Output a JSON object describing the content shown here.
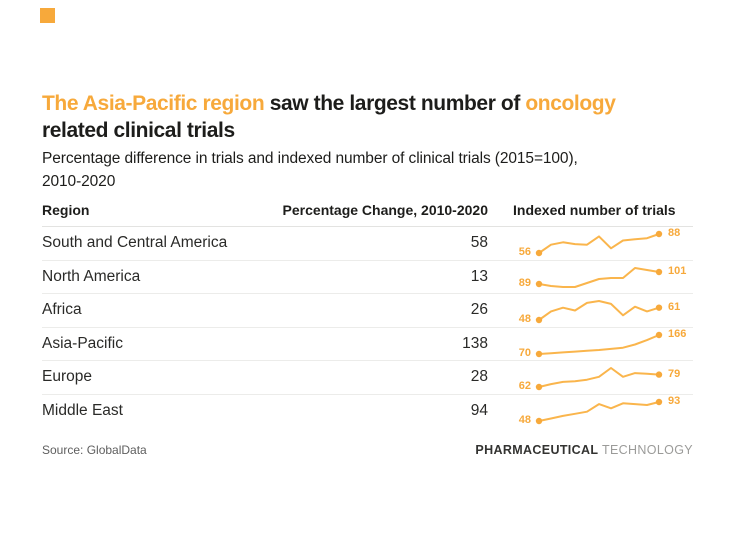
{
  "accent_color": "#F7A93B",
  "sparkline_color": "#FAB54C",
  "title": {
    "highlight1": "The Asia-Pacific region",
    "middle": " saw the largest number of ",
    "highlight2": "oncology",
    "line2": "related clinical trials"
  },
  "subtitle": {
    "line1": "Percentage difference in trials and indexed number of clinical trials (2015=100),",
    "line2": "2010-2020"
  },
  "table": {
    "headers": {
      "region": "Region",
      "pct_change": "Percentage Change, 2010-2020",
      "indexed": "Indexed number of trials"
    }
  },
  "chart_data": {
    "type": "table",
    "title": "The Asia-Pacific region saw the largest number of oncology related clinical trials",
    "subtitle": "Percentage difference in trials and indexed number of clinical trials (2015=100), 2010-2020",
    "columns": [
      "Region",
      "Percentage Change, 2010-2020",
      "Indexed number of trials"
    ],
    "sparkline_type": "line",
    "sparkline_x_range": [
      2010,
      2020
    ],
    "sparkline_index_base": "2015=100",
    "rows": [
      {
        "region": "South and Central America",
        "pct_change": 58,
        "index_start": 56,
        "index_end": 88,
        "sparkline": [
          56,
          70,
          74,
          71,
          70,
          84,
          64,
          77,
          79,
          81,
          88
        ]
      },
      {
        "region": "North America",
        "pct_change": 13,
        "index_start": 89,
        "index_end": 101,
        "sparkline": [
          89,
          87,
          86,
          86,
          90,
          94,
          95,
          95,
          105,
          103,
          101
        ]
      },
      {
        "region": "Africa",
        "pct_change": 26,
        "index_start": 48,
        "index_end": 61,
        "sparkline": [
          48,
          57,
          61,
          58,
          66,
          68,
          65,
          53,
          62,
          57,
          61
        ]
      },
      {
        "region": "Asia-Pacific",
        "pct_change": 138,
        "index_start": 70,
        "index_end": 166,
        "sparkline": [
          70,
          74,
          78,
          82,
          86,
          90,
          96,
          102,
          118,
          140,
          166
        ]
      },
      {
        "region": "Europe",
        "pct_change": 28,
        "index_start": 62,
        "index_end": 79,
        "sparkline": [
          62,
          66,
          69,
          70,
          72,
          76,
          88,
          76,
          81,
          80,
          79
        ]
      },
      {
        "region": "Middle East",
        "pct_change": 94,
        "index_start": 48,
        "index_end": 93,
        "sparkline": [
          48,
          54,
          60,
          65,
          70,
          88,
          78,
          90,
          88,
          86,
          93
        ]
      }
    ]
  },
  "footer": {
    "source": "Source: GlobalData",
    "brand_bold": "PHARMACEUTICAL",
    "brand_light": "TECHNOLOGY"
  }
}
